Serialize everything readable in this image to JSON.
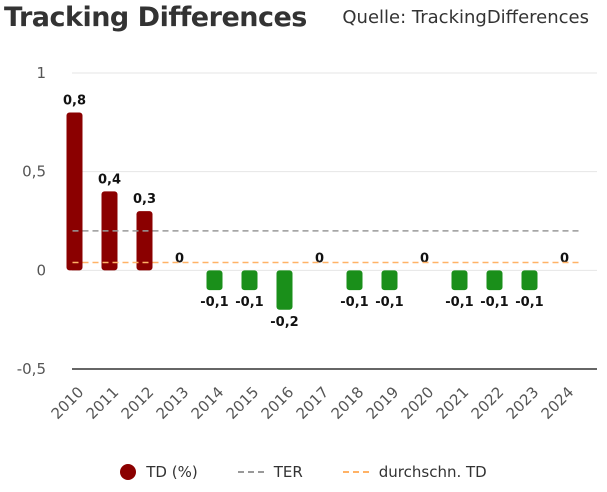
{
  "header": {
    "title": "Tracking Differences",
    "source": "Quelle: TrackingDifferences"
  },
  "chart_data": {
    "type": "bar",
    "title": "Tracking Differences",
    "categories": [
      "2010",
      "2011",
      "2012",
      "2013",
      "2014",
      "2015",
      "2016",
      "2017",
      "2018",
      "2019",
      "2020",
      "2021",
      "2022",
      "2023",
      "2024"
    ],
    "series": [
      {
        "name": "TD (%)",
        "values": [
          0.8,
          0.4,
          0.3,
          0,
          -0.1,
          -0.1,
          -0.2,
          0,
          -0.1,
          -0.1,
          0,
          -0.1,
          -0.1,
          -0.1,
          0
        ],
        "labels": [
          "0,8",
          "0,4",
          "0,3",
          "0",
          "-0,1",
          "-0,1",
          "-0,2",
          "0",
          "-0,1",
          "-0,1",
          "0",
          "-0,1",
          "-0,1",
          "-0,1",
          "0"
        ],
        "positive_color": "#8b0000",
        "negative_color": "#1a8f1a"
      },
      {
        "name": "TER",
        "type": "line",
        "value": 0.2,
        "color": "#999999"
      },
      {
        "name": "durchschn. TD",
        "type": "line",
        "value": 0.04,
        "color": "#ffb266"
      }
    ],
    "ylim": [
      -0.5,
      1
    ],
    "yticks": [
      1,
      0.5,
      0,
      -0.5
    ],
    "ytick_labels": [
      "1",
      "0,5",
      "0",
      "-0,5"
    ],
    "xlabel": "",
    "ylabel": "",
    "grid": true,
    "legend_position": "bottom"
  },
  "legend": {
    "td_label": "TD (%)",
    "ter_label": "TER",
    "avg_label": "durchschn. TD"
  }
}
